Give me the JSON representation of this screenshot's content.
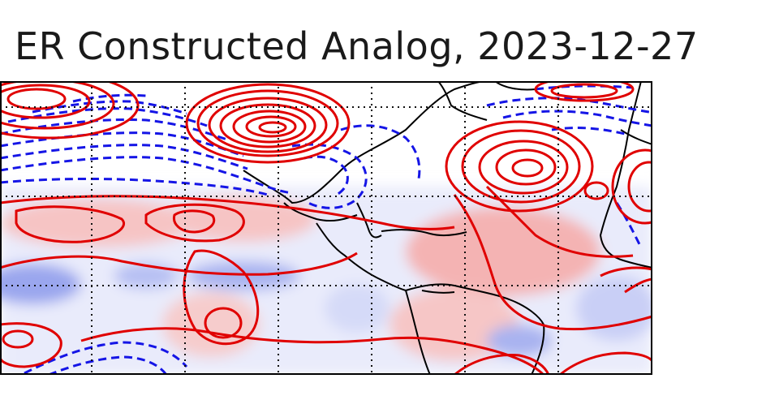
{
  "title": "ER Constructed Analog, 2023-12-27",
  "map": {
    "projection": "cylindrical",
    "grid": "dotted",
    "contours": {
      "positive_color": "#e00000",
      "negative_color": "#1515e6",
      "negative_linestyle": "dashed"
    },
    "shading": {
      "positive_color": "#f4a6a6",
      "negative_color": "#8f9cf0"
    },
    "coastline_color": "#000000"
  }
}
